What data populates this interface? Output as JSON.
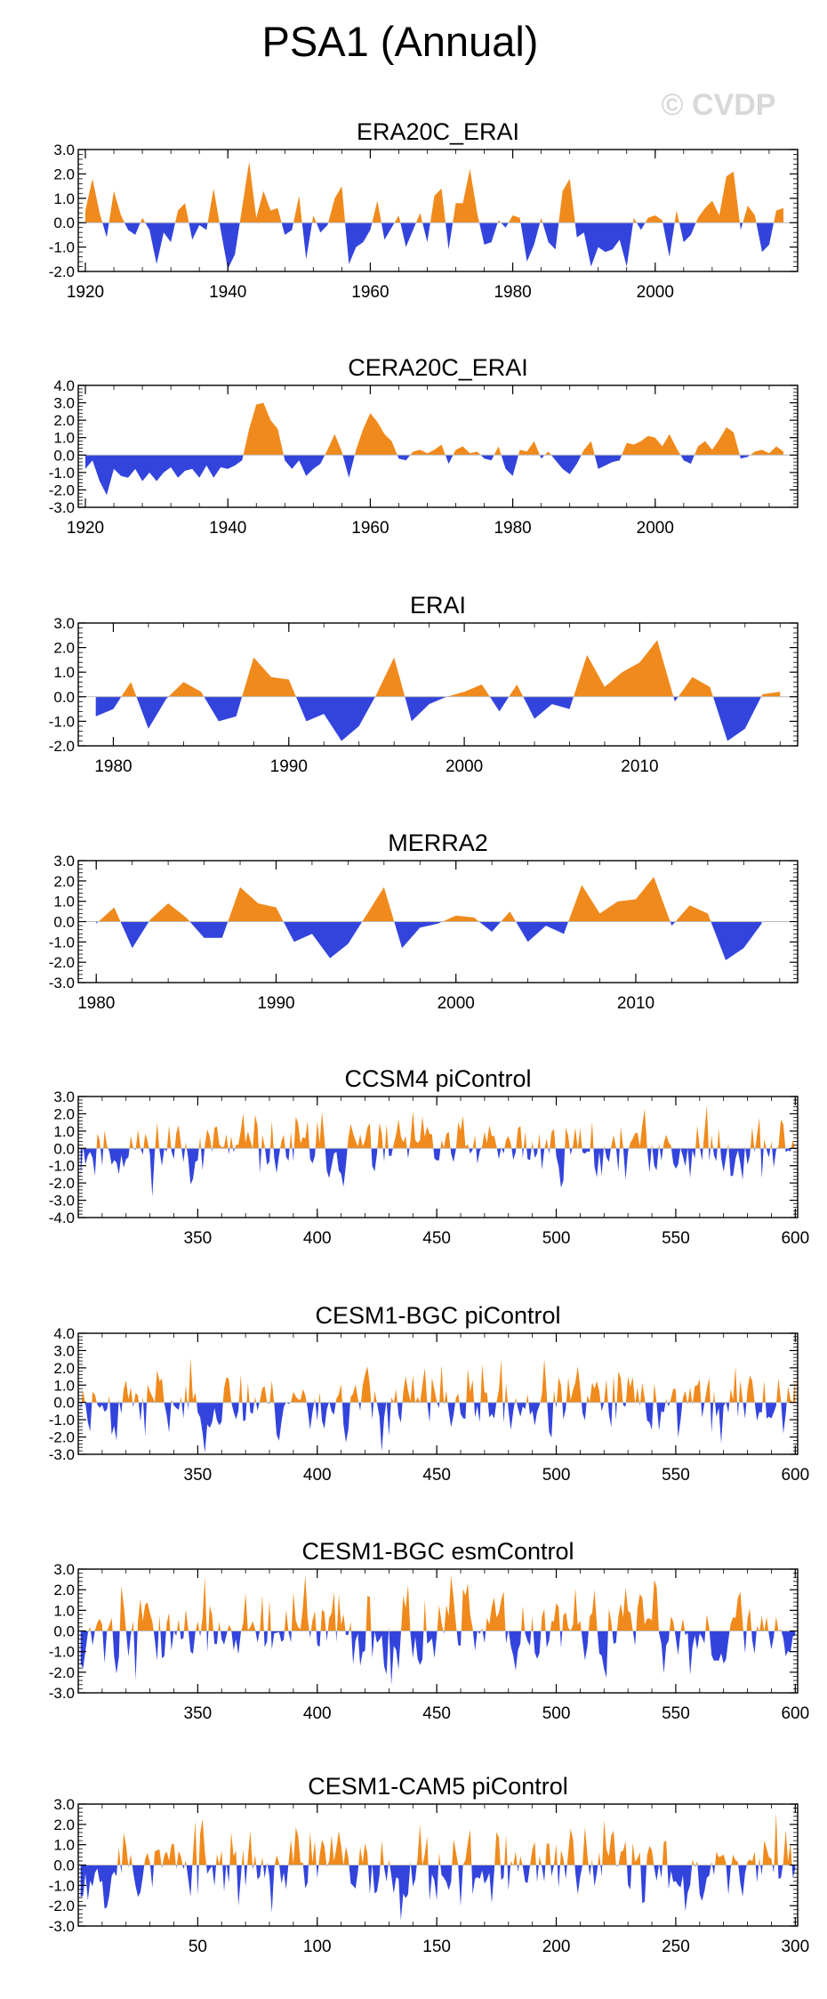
{
  "page": {
    "title": "PSA1 (Annual)",
    "watermark": "© CVDP"
  },
  "colors": {
    "positive": "#f08a1c",
    "negative": "#3344dd",
    "frame": "#000000"
  },
  "chart_data": [
    {
      "type": "area",
      "title": "ERA20C_ERAI",
      "xlim": [
        1919,
        2020
      ],
      "ylim": [
        -2,
        3
      ],
      "yticks": [
        3.0,
        2.0,
        1.0,
        0.0,
        -1.0,
        -2.0
      ],
      "xticks": [
        1920,
        1940,
        1960,
        1980,
        2000
      ],
      "yticklabels": [
        "3.0",
        "2.0",
        "1.0",
        "0.0",
        "-1.0",
        "-2.0"
      ],
      "xticklabels": [
        "1920",
        "1940",
        "1960",
        "1980",
        "2000"
      ],
      "x": [
        1920,
        1921,
        1922,
        1923,
        1924,
        1925,
        1926,
        1927,
        1928,
        1929,
        1930,
        1931,
        1932,
        1933,
        1934,
        1935,
        1936,
        1937,
        1938,
        1939,
        1940,
        1941,
        1942,
        1943,
        1944,
        1945,
        1946,
        1947,
        1948,
        1949,
        1950,
        1951,
        1952,
        1953,
        1954,
        1955,
        1956,
        1957,
        1958,
        1959,
        1960,
        1961,
        1962,
        1963,
        1964,
        1965,
        1966,
        1967,
        1968,
        1969,
        1970,
        1971,
        1972,
        1973,
        1974,
        1975,
        1976,
        1977,
        1978,
        1979,
        1980,
        1981,
        1982,
        1983,
        1984,
        1985,
        1986,
        1987,
        1988,
        1989,
        1990,
        1991,
        1992,
        1993,
        1994,
        1995,
        1996,
        1997,
        1998,
        1999,
        2000,
        2001,
        2002,
        2003,
        2004,
        2005,
        2006,
        2007,
        2008,
        2009,
        2010,
        2011,
        2012,
        2013,
        2014,
        2015,
        2016,
        2017,
        2018
      ],
      "values": [
        0.5,
        1.8,
        0.4,
        -0.6,
        1.3,
        0.3,
        -0.3,
        -0.5,
        0.2,
        -0.3,
        -1.7,
        -0.4,
        -0.8,
        0.5,
        0.8,
        -0.7,
        -0.1,
        -0.3,
        1.4,
        -0.3,
        -1.9,
        -1.3,
        0.6,
        2.5,
        0.2,
        1.3,
        0.5,
        0.6,
        -0.5,
        -0.3,
        1.1,
        -1.5,
        0.3,
        -0.4,
        -0.1,
        1.0,
        1.5,
        -1.7,
        -1.0,
        -0.8,
        -0.3,
        0.9,
        -0.7,
        -0.2,
        0.3,
        -1.0,
        -0.3,
        0.4,
        -0.8,
        1.1,
        1.4,
        -1.1,
        0.8,
        0.8,
        2.2,
        0.4,
        -0.9,
        -0.8,
        0.1,
        -0.2,
        0.3,
        0.2,
        -1.6,
        -0.9,
        0.2,
        -0.8,
        -1.1,
        1.3,
        1.8,
        -0.6,
        -0.4,
        -1.8,
        -1.0,
        -1.2,
        -1.1,
        -0.7,
        -1.8,
        0.2,
        -0.3,
        0.2,
        0.3,
        0.1,
        -1.4,
        0.5,
        -0.8,
        -0.5,
        0.2,
        0.6,
        0.9,
        0.3,
        1.9,
        2.1,
        -0.3,
        0.7,
        0.3,
        -1.2,
        -0.9,
        0.5,
        0.6
      ]
    },
    {
      "type": "area",
      "title": "CERA20C_ERAI",
      "xlim": [
        1919,
        2020
      ],
      "ylim": [
        -3,
        4
      ],
      "yticks": [
        4.0,
        3.0,
        2.0,
        1.0,
        0.0,
        -1.0,
        -2.0,
        -3.0
      ],
      "xticks": [
        1920,
        1940,
        1960,
        1980,
        2000
      ],
      "yticklabels": [
        "4.0",
        "3.0",
        "2.0",
        "1.0",
        "0.0",
        "-1.0",
        "-2.0",
        "-3.0"
      ],
      "xticklabels": [
        "1920",
        "1940",
        "1960",
        "1980",
        "2000"
      ],
      "x": [
        1920,
        1921,
        1922,
        1923,
        1924,
        1925,
        1926,
        1927,
        1928,
        1929,
        1930,
        1931,
        1932,
        1933,
        1934,
        1935,
        1936,
        1937,
        1938,
        1939,
        1940,
        1941,
        1942,
        1943,
        1944,
        1945,
        1946,
        1947,
        1948,
        1949,
        1950,
        1951,
        1952,
        1953,
        1954,
        1955,
        1956,
        1957,
        1958,
        1959,
        1960,
        1961,
        1962,
        1963,
        1964,
        1965,
        1966,
        1967,
        1968,
        1969,
        1970,
        1971,
        1972,
        1973,
        1974,
        1975,
        1976,
        1977,
        1978,
        1979,
        1980,
        1981,
        1982,
        1983,
        1984,
        1985,
        1986,
        1987,
        1988,
        1989,
        1990,
        1991,
        1992,
        1993,
        1994,
        1995,
        1996,
        1997,
        1998,
        1999,
        2000,
        2001,
        2002,
        2003,
        2004,
        2005,
        2006,
        2007,
        2008,
        2009,
        2010,
        2011,
        2012,
        2013,
        2014,
        2015,
        2016,
        2017,
        2018
      ],
      "values": [
        -0.8,
        -0.3,
        -1.5,
        -2.3,
        -0.8,
        -1.2,
        -1.3,
        -0.8,
        -1.5,
        -1.0,
        -1.5,
        -1.0,
        -0.7,
        -1.3,
        -0.9,
        -0.8,
        -1.3,
        -0.6,
        -1.3,
        -0.7,
        -0.8,
        -0.6,
        -0.3,
        1.5,
        2.9,
        3.0,
        2.0,
        1.5,
        -0.3,
        -0.8,
        -0.3,
        -1.2,
        -0.8,
        -0.5,
        0.3,
        1.2,
        0.2,
        -1.3,
        0.3,
        1.5,
        2.4,
        1.9,
        1.2,
        0.8,
        -0.2,
        -0.3,
        0.2,
        0.3,
        0.1,
        0.3,
        0.6,
        -0.5,
        0.3,
        0.5,
        0.1,
        0.2,
        -0.2,
        -0.3,
        0.5,
        -0.8,
        -1.2,
        0.3,
        0.2,
        0.8,
        -0.2,
        0.2,
        -0.3,
        -0.8,
        -1.1,
        -0.5,
        0.3,
        0.8,
        -0.8,
        -0.6,
        -0.4,
        -0.3,
        0.7,
        0.6,
        0.8,
        1.1,
        1.0,
        0.5,
        1.2,
        0.4,
        -0.3,
        -0.5,
        0.5,
        0.8,
        0.3,
        0.9,
        1.6,
        1.3,
        -0.2,
        -0.1,
        0.2,
        0.3,
        0.1,
        0.5,
        0.2
      ]
    },
    {
      "type": "area",
      "title": "ERAI",
      "xlim": [
        1978,
        2019
      ],
      "ylim": [
        -2,
        3
      ],
      "yticks": [
        3.0,
        2.0,
        1.0,
        0.0,
        -1.0,
        -2.0
      ],
      "xticks": [
        1980,
        1990,
        2000,
        2010
      ],
      "yticklabels": [
        "3.0",
        "2.0",
        "1.0",
        "0.0",
        "-1.0",
        "-2.0"
      ],
      "xticklabels": [
        "1980",
        "1990",
        "2000",
        "2010"
      ],
      "x": [
        1979,
        1980,
        1981,
        1982,
        1983,
        1984,
        1985,
        1986,
        1987,
        1988,
        1989,
        1990,
        1991,
        1992,
        1993,
        1994,
        1995,
        1996,
        1997,
        1998,
        1999,
        2000,
        2001,
        2002,
        2003,
        2004,
        2005,
        2006,
        2007,
        2008,
        2009,
        2010,
        2011,
        2012,
        2013,
        2014,
        2015,
        2016,
        2017,
        2018
      ],
      "values": [
        -0.8,
        -0.5,
        0.6,
        -1.3,
        -0.1,
        0.6,
        0.2,
        -1.0,
        -0.8,
        1.6,
        0.8,
        0.7,
        -1.0,
        -0.7,
        -1.8,
        -1.2,
        0.1,
        1.6,
        -1.0,
        -0.3,
        0.0,
        0.2,
        0.5,
        -0.6,
        0.5,
        -0.9,
        -0.3,
        -0.5,
        1.7,
        0.4,
        1.0,
        1.4,
        2.3,
        -0.2,
        0.8,
        0.4,
        -1.8,
        -1.3,
        0.1,
        0.2
      ]
    },
    {
      "type": "area",
      "title": "MERRA2",
      "xlim": [
        1979,
        2019
      ],
      "ylim": [
        -3,
        3
      ],
      "yticks": [
        3.0,
        2.0,
        1.0,
        0.0,
        -1.0,
        -2.0,
        -3.0
      ],
      "xticks": [
        1980,
        1990,
        2000,
        2010
      ],
      "yticklabels": [
        "3.0",
        "2.0",
        "1.0",
        "0.0",
        "-1.0",
        "-2.0",
        "-3.0"
      ],
      "xticklabels": [
        "1980",
        "1990",
        "2000",
        "2010"
      ],
      "x": [
        1980,
        1981,
        1982,
        1983,
        1984,
        1985,
        1986,
        1987,
        1988,
        1989,
        1990,
        1991,
        1992,
        1993,
        1994,
        1995,
        1996,
        1997,
        1998,
        1999,
        2000,
        2001,
        2002,
        2003,
        2004,
        2005,
        2006,
        2007,
        2008,
        2009,
        2010,
        2011,
        2012,
        2013,
        2014,
        2015,
        2016,
        2017
      ],
      "values": [
        -0.1,
        0.7,
        -1.3,
        0.1,
        0.9,
        0.2,
        -0.8,
        -0.8,
        1.7,
        0.9,
        0.7,
        -1.0,
        -0.6,
        -1.8,
        -1.1,
        0.3,
        1.7,
        -1.3,
        -0.3,
        -0.1,
        0.3,
        0.2,
        -0.5,
        0.5,
        -1.0,
        -0.2,
        -0.6,
        1.8,
        0.4,
        1.0,
        1.1,
        2.2,
        -0.2,
        0.8,
        0.4,
        -1.9,
        -1.3,
        -0.1
      ]
    },
    {
      "type": "area",
      "title": "CCSM4 piControl",
      "generated": true,
      "seed": 11,
      "n": 300,
      "x_start": 301,
      "amplitude": 0.9,
      "clip": [
        -3.2,
        2.5
      ],
      "xlim": [
        300,
        601
      ],
      "ylim": [
        -4,
        3
      ],
      "yticks": [
        3.0,
        2.0,
        1.0,
        0.0,
        -1.0,
        -2.0,
        -3.0,
        -4.0
      ],
      "xticks": [
        350,
        400,
        450,
        500,
        550,
        600
      ],
      "yticklabels": [
        "3.0",
        "2.0",
        "1.0",
        "0.0",
        "-1.0",
        "-2.0",
        "-3.0",
        "-4.0"
      ],
      "xticklabels": [
        "350",
        "400",
        "450",
        "500",
        "550",
        "600"
      ]
    },
    {
      "type": "area",
      "title": "CESM1-BGC piControl",
      "generated": true,
      "seed": 23,
      "n": 300,
      "x_start": 301,
      "amplitude": 1.0,
      "clip": [
        -3.0,
        3.3
      ],
      "xlim": [
        300,
        601
      ],
      "ylim": [
        -3,
        4
      ],
      "yticks": [
        4.0,
        3.0,
        2.0,
        1.0,
        0.0,
        -1.0,
        -2.0,
        -3.0
      ],
      "xticks": [
        350,
        400,
        450,
        500,
        550,
        600
      ],
      "yticklabels": [
        "4.0",
        "3.0",
        "2.0",
        "1.0",
        "0.0",
        "-1.0",
        "-2.0",
        "-3.0"
      ],
      "xticklabels": [
        "350",
        "400",
        "450",
        "500",
        "550",
        "600"
      ]
    },
    {
      "type": "area",
      "title": "CESM1-BGC esmControl",
      "generated": true,
      "seed": 37,
      "n": 300,
      "x_start": 301,
      "amplitude": 1.0,
      "clip": [
        -3.0,
        2.7
      ],
      "xlim": [
        300,
        601
      ],
      "ylim": [
        -3,
        3
      ],
      "yticks": [
        3.0,
        2.0,
        1.0,
        0.0,
        -1.0,
        -2.0,
        -3.0
      ],
      "xticks": [
        350,
        400,
        450,
        500,
        550,
        600
      ],
      "yticklabels": [
        "3.0",
        "2.0",
        "1.0",
        "0.0",
        "-1.0",
        "-2.0",
        "-3.0"
      ],
      "xticklabels": [
        "350",
        "400",
        "450",
        "500",
        "550",
        "600"
      ]
    },
    {
      "type": "area",
      "title": "CESM1-CAM5 piControl",
      "generated": true,
      "seed": 53,
      "n": 300,
      "x_start": 1,
      "amplitude": 1.0,
      "clip": [
        -2.8,
        2.6
      ],
      "xlim": [
        0,
        301
      ],
      "ylim": [
        -3,
        3
      ],
      "yticks": [
        3.0,
        2.0,
        1.0,
        0.0,
        -1.0,
        -2.0,
        -3.0
      ],
      "xticks": [
        50,
        100,
        150,
        200,
        250,
        300
      ],
      "yticklabels": [
        "3.0",
        "2.0",
        "1.0",
        "0.0",
        "-1.0",
        "-2.0",
        "-3.0"
      ],
      "xticklabels": [
        "50",
        "100",
        "150",
        "200",
        "250",
        "300"
      ]
    }
  ]
}
